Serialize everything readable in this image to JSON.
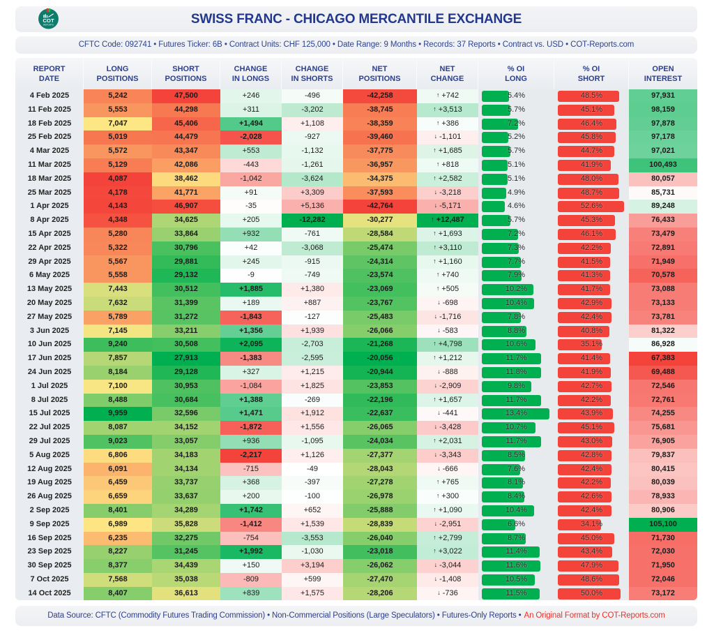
{
  "header": {
    "logo_text": "COT",
    "logo_subtext": "REPORTS"
  },
  "footer": {
    "source": "Data Source: CFTC (Commodity Futures Trading Commission) • Non-Commercial Positions (Large Speculators) • Futures-Only Reports •",
    "credit": "An Original Format by COT-Reports.com"
  },
  "icons": {
    "up": "↑",
    "down": "↓"
  },
  "colors": {
    "heat_red": "#f4433a",
    "heat_yellow": "#fee784",
    "heat_green": "#00b050",
    "heat_white": "#ffffff",
    "bar_long": "#00b050",
    "bar_short": "#f4433a",
    "text_navy": "#23388c",
    "credit_red": "#e8322a",
    "logo_teal": "#0f7b6c"
  },
  "chart_data": {
    "type": "table",
    "title": "SWISS FRANC - CHICAGO MERCANTILE EXCHANGE",
    "subtitle": "CFTC Code: 092741 • Futures Ticker: 6B • Contract Units: CHF 125,000 • Date Range: 9 Months • Records: 37 Reports • Contract vs. USD • COT-Reports.com",
    "columns": [
      {
        "key": "date",
        "line1": "REPORT",
        "line2": "DATE"
      },
      {
        "key": "long_positions",
        "line1": "LONG",
        "line2": "POSITIONS"
      },
      {
        "key": "short_positions",
        "line1": "SHORT",
        "line2": "POSITIONS"
      },
      {
        "key": "change_in_longs",
        "line1": "CHANGE",
        "line2": "IN LONGS"
      },
      {
        "key": "change_in_shorts",
        "line1": "CHANGE",
        "line2": "IN SHORTS"
      },
      {
        "key": "net_positions",
        "line1": "NET",
        "line2": "POSITIONS"
      },
      {
        "key": "net_change",
        "line1": "NET",
        "line2": "CHANGE"
      },
      {
        "key": "pct_oi_long",
        "line1": "% OI",
        "line2": "LONG"
      },
      {
        "key": "pct_oi_short",
        "line1": "% OI",
        "line2": "SHORT"
      },
      {
        "key": "open_interest",
        "line1": "OPEN",
        "line2": "INTEREST"
      }
    ],
    "rows": [
      {
        "date": "4 Feb 2025",
        "long_positions": "5,242",
        "short_positions": "47,500",
        "change_in_longs": "+246",
        "change_in_shorts": "-496",
        "net_positions": "-42,258",
        "net_change": "+742",
        "pct_oi_long": "5.4%",
        "pct_oi_short": "48.5%",
        "open_interest": "97,931"
      },
      {
        "date": "11 Feb 2025",
        "long_positions": "5,553",
        "short_positions": "44,298",
        "change_in_longs": "+311",
        "change_in_shorts": "-3,202",
        "net_positions": "-38,745",
        "net_change": "+3,513",
        "pct_oi_long": "5.7%",
        "pct_oi_short": "45.1%",
        "open_interest": "98,159"
      },
      {
        "date": "18 Feb 2025",
        "long_positions": "7,047",
        "short_positions": "45,406",
        "change_in_longs": "+1,494",
        "change_in_shorts": "+1,108",
        "net_positions": "-38,359",
        "net_change": "+386",
        "pct_oi_long": "7.2%",
        "pct_oi_short": "46.4%",
        "open_interest": "97,878"
      },
      {
        "date": "25 Feb 2025",
        "long_positions": "5,019",
        "short_positions": "44,479",
        "change_in_longs": "-2,028",
        "change_in_shorts": "-927",
        "net_positions": "-39,460",
        "net_change": "-1,101",
        "pct_oi_long": "5.2%",
        "pct_oi_short": "45.8%",
        "open_interest": "97,178"
      },
      {
        "date": "4 Mar 2025",
        "long_positions": "5,572",
        "short_positions": "43,347",
        "change_in_longs": "+553",
        "change_in_shorts": "-1,132",
        "net_positions": "-37,775",
        "net_change": "+1,685",
        "pct_oi_long": "5.7%",
        "pct_oi_short": "44.7%",
        "open_interest": "97,021"
      },
      {
        "date": "11 Mar 2025",
        "long_positions": "5,129",
        "short_positions": "42,086",
        "change_in_longs": "-443",
        "change_in_shorts": "-1,261",
        "net_positions": "-36,957",
        "net_change": "+818",
        "pct_oi_long": "5.1%",
        "pct_oi_short": "41.9%",
        "open_interest": "100,493"
      },
      {
        "date": "18 Mar 2025",
        "long_positions": "4,087",
        "short_positions": "38,462",
        "change_in_longs": "-1,042",
        "change_in_shorts": "-3,624",
        "net_positions": "-34,375",
        "net_change": "+2,582",
        "pct_oi_long": "5.1%",
        "pct_oi_short": "48.0%",
        "open_interest": "80,057"
      },
      {
        "date": "25 Mar 2025",
        "long_positions": "4,178",
        "short_positions": "41,771",
        "change_in_longs": "+91",
        "change_in_shorts": "+3,309",
        "net_positions": "-37,593",
        "net_change": "-3,218",
        "pct_oi_long": "4.9%",
        "pct_oi_short": "48.7%",
        "open_interest": "85,731"
      },
      {
        "date": "1 Apr 2025",
        "long_positions": "4,143",
        "short_positions": "46,907",
        "change_in_longs": "-35",
        "change_in_shorts": "+5,136",
        "net_positions": "-42,764",
        "net_change": "-5,171",
        "pct_oi_long": "4.6%",
        "pct_oi_short": "52.6%",
        "open_interest": "89,248"
      },
      {
        "date": "8 Apr 2025",
        "long_positions": "4,348",
        "short_positions": "34,625",
        "change_in_longs": "+205",
        "change_in_shorts": "-12,282",
        "net_positions": "-30,277",
        "net_change": "+12,487",
        "pct_oi_long": "5.7%",
        "pct_oi_short": "45.3%",
        "open_interest": "76,433"
      },
      {
        "date": "15 Apr 2025",
        "long_positions": "5,280",
        "short_positions": "33,864",
        "change_in_longs": "+932",
        "change_in_shorts": "-761",
        "net_positions": "-28,584",
        "net_change": "+1,693",
        "pct_oi_long": "7.2%",
        "pct_oi_short": "46.1%",
        "open_interest": "73,479"
      },
      {
        "date": "22 Apr 2025",
        "long_positions": "5,322",
        "short_positions": "30,796",
        "change_in_longs": "+42",
        "change_in_shorts": "-3,068",
        "net_positions": "-25,474",
        "net_change": "+3,110",
        "pct_oi_long": "7.3%",
        "pct_oi_short": "42.2%",
        "open_interest": "72,891"
      },
      {
        "date": "29 Apr 2025",
        "long_positions": "5,567",
        "short_positions": "29,881",
        "change_in_longs": "+245",
        "change_in_shorts": "-915",
        "net_positions": "-24,314",
        "net_change": "+1,160",
        "pct_oi_long": "7.7%",
        "pct_oi_short": "41.5%",
        "open_interest": "71,949"
      },
      {
        "date": "6 May 2025",
        "long_positions": "5,558",
        "short_positions": "29,132",
        "change_in_longs": "-9",
        "change_in_shorts": "-749",
        "net_positions": "-23,574",
        "net_change": "+740",
        "pct_oi_long": "7.9%",
        "pct_oi_short": "41.3%",
        "open_interest": "70,578"
      },
      {
        "date": "13 May 2025",
        "long_positions": "7,443",
        "short_positions": "30,512",
        "change_in_longs": "+1,885",
        "change_in_shorts": "+1,380",
        "net_positions": "-23,069",
        "net_change": "+505",
        "pct_oi_long": "10.2%",
        "pct_oi_short": "41.7%",
        "open_interest": "73,088"
      },
      {
        "date": "20 May 2025",
        "long_positions": "7,632",
        "short_positions": "31,399",
        "change_in_longs": "+189",
        "change_in_shorts": "+887",
        "net_positions": "-23,767",
        "net_change": "-698",
        "pct_oi_long": "10.4%",
        "pct_oi_short": "42.9%",
        "open_interest": "73,133"
      },
      {
        "date": "27 May 2025",
        "long_positions": "5,789",
        "short_positions": "31,272",
        "change_in_longs": "-1,843",
        "change_in_shorts": "-127",
        "net_positions": "-25,483",
        "net_change": "-1,716",
        "pct_oi_long": "7.8%",
        "pct_oi_short": "42.4%",
        "open_interest": "73,781"
      },
      {
        "date": "3 Jun 2025",
        "long_positions": "7,145",
        "short_positions": "33,211",
        "change_in_longs": "+1,356",
        "change_in_shorts": "+1,939",
        "net_positions": "-26,066",
        "net_change": "-583",
        "pct_oi_long": "8.8%",
        "pct_oi_short": "40.8%",
        "open_interest": "81,322"
      },
      {
        "date": "10 Jun 2025",
        "long_positions": "9,240",
        "short_positions": "30,508",
        "change_in_longs": "+2,095",
        "change_in_shorts": "-2,703",
        "net_positions": "-21,268",
        "net_change": "+4,798",
        "pct_oi_long": "10.6%",
        "pct_oi_short": "35.1%",
        "open_interest": "86,928"
      },
      {
        "date": "17 Jun 2025",
        "long_positions": "7,857",
        "short_positions": "27,913",
        "change_in_longs": "-1,383",
        "change_in_shorts": "-2,595",
        "net_positions": "-20,056",
        "net_change": "+1,212",
        "pct_oi_long": "11.7%",
        "pct_oi_short": "41.4%",
        "open_interest": "67,383"
      },
      {
        "date": "24 Jun 2025",
        "long_positions": "8,184",
        "short_positions": "29,128",
        "change_in_longs": "+327",
        "change_in_shorts": "+1,215",
        "net_positions": "-20,944",
        "net_change": "-888",
        "pct_oi_long": "11.8%",
        "pct_oi_short": "41.9%",
        "open_interest": "69,488"
      },
      {
        "date": "1 Jul 2025",
        "long_positions": "7,100",
        "short_positions": "30,953",
        "change_in_longs": "-1,084",
        "change_in_shorts": "+1,825",
        "net_positions": "-23,853",
        "net_change": "-2,909",
        "pct_oi_long": "9.8%",
        "pct_oi_short": "42.7%",
        "open_interest": "72,546"
      },
      {
        "date": "8 Jul 2025",
        "long_positions": "8,488",
        "short_positions": "30,684",
        "change_in_longs": "+1,388",
        "change_in_shorts": "-269",
        "net_positions": "-22,196",
        "net_change": "+1,657",
        "pct_oi_long": "11.7%",
        "pct_oi_short": "42.2%",
        "open_interest": "72,761"
      },
      {
        "date": "15 Jul 2025",
        "long_positions": "9,959",
        "short_positions": "32,596",
        "change_in_longs": "+1,471",
        "change_in_shorts": "+1,912",
        "net_positions": "-22,637",
        "net_change": "-441",
        "pct_oi_long": "13.4%",
        "pct_oi_short": "43.9%",
        "open_interest": "74,255"
      },
      {
        "date": "22 Jul 2025",
        "long_positions": "8,087",
        "short_positions": "34,152",
        "change_in_longs": "-1,872",
        "change_in_shorts": "+1,556",
        "net_positions": "-26,065",
        "net_change": "-3,428",
        "pct_oi_long": "10.7%",
        "pct_oi_short": "45.1%",
        "open_interest": "75,681"
      },
      {
        "date": "29 Jul 2025",
        "long_positions": "9,023",
        "short_positions": "33,057",
        "change_in_longs": "+936",
        "change_in_shorts": "-1,095",
        "net_positions": "-24,034",
        "net_change": "+2,031",
        "pct_oi_long": "11.7%",
        "pct_oi_short": "43.0%",
        "open_interest": "76,905"
      },
      {
        "date": "5 Aug 2025",
        "long_positions": "6,806",
        "short_positions": "34,183",
        "change_in_longs": "-2,217",
        "change_in_shorts": "+1,126",
        "net_positions": "-27,377",
        "net_change": "-3,343",
        "pct_oi_long": "8.5%",
        "pct_oi_short": "42.8%",
        "open_interest": "79,837"
      },
      {
        "date": "12 Aug 2025",
        "long_positions": "6,091",
        "short_positions": "34,134",
        "change_in_longs": "-715",
        "change_in_shorts": "-49",
        "net_positions": "-28,043",
        "net_change": "-666",
        "pct_oi_long": "7.6%",
        "pct_oi_short": "42.4%",
        "open_interest": "80,415"
      },
      {
        "date": "19 Aug 2025",
        "long_positions": "6,459",
        "short_positions": "33,737",
        "change_in_longs": "+368",
        "change_in_shorts": "-397",
        "net_positions": "-27,278",
        "net_change": "+765",
        "pct_oi_long": "8.1%",
        "pct_oi_short": "42.2%",
        "open_interest": "80,039"
      },
      {
        "date": "26 Aug 2025",
        "long_positions": "6,659",
        "short_positions": "33,637",
        "change_in_longs": "+200",
        "change_in_shorts": "-100",
        "net_positions": "-26,978",
        "net_change": "+300",
        "pct_oi_long": "8.4%",
        "pct_oi_short": "42.6%",
        "open_interest": "78,933"
      },
      {
        "date": "2 Sep 2025",
        "long_positions": "8,401",
        "short_positions": "34,289",
        "change_in_longs": "+1,742",
        "change_in_shorts": "+652",
        "net_positions": "-25,888",
        "net_change": "+1,090",
        "pct_oi_long": "10.4%",
        "pct_oi_short": "42.4%",
        "open_interest": "80,906"
      },
      {
        "date": "9 Sep 2025",
        "long_positions": "6,989",
        "short_positions": "35,828",
        "change_in_longs": "-1,412",
        "change_in_shorts": "+1,539",
        "net_positions": "-28,839",
        "net_change": "-2,951",
        "pct_oi_long": "6.6%",
        "pct_oi_short": "34.1%",
        "open_interest": "105,100"
      },
      {
        "date": "16 Sep 2025",
        "long_positions": "6,235",
        "short_positions": "32,275",
        "change_in_longs": "-754",
        "change_in_shorts": "-3,553",
        "net_positions": "-26,040",
        "net_change": "+2,799",
        "pct_oi_long": "8.7%",
        "pct_oi_short": "45.0%",
        "open_interest": "71,730"
      },
      {
        "date": "23 Sep 2025",
        "long_positions": "8,227",
        "short_positions": "31,245",
        "change_in_longs": "+1,992",
        "change_in_shorts": "-1,030",
        "net_positions": "-23,018",
        "net_change": "+3,022",
        "pct_oi_long": "11.4%",
        "pct_oi_short": "43.4%",
        "open_interest": "72,030"
      },
      {
        "date": "30 Sep 2025",
        "long_positions": "8,377",
        "short_positions": "34,439",
        "change_in_longs": "+150",
        "change_in_shorts": "+3,194",
        "net_positions": "-26,062",
        "net_change": "-3,044",
        "pct_oi_long": "11.6%",
        "pct_oi_short": "47.9%",
        "open_interest": "71,950"
      },
      {
        "date": "7 Oct 2025",
        "long_positions": "7,568",
        "short_positions": "35,038",
        "change_in_longs": "-809",
        "change_in_shorts": "+599",
        "net_positions": "-27,470",
        "net_change": "-1,408",
        "pct_oi_long": "10.5%",
        "pct_oi_short": "48.6%",
        "open_interest": "72,046"
      },
      {
        "date": "14 Oct 2025",
        "long_positions": "8,407",
        "short_positions": "36,613",
        "change_in_longs": "+839",
        "change_in_shorts": "+1,575",
        "net_positions": "-28,206",
        "net_change": "-736",
        "pct_oi_long": "11.5%",
        "pct_oi_short": "50.0%",
        "open_interest": "73,172"
      }
    ]
  }
}
